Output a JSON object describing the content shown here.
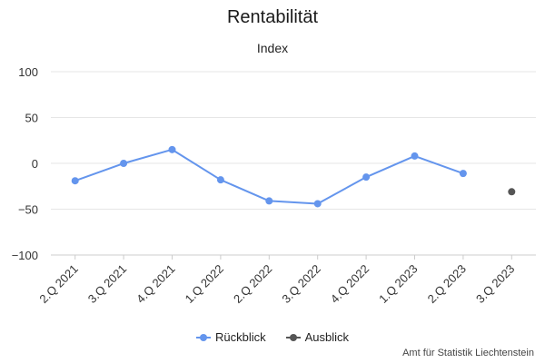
{
  "chart_data": {
    "type": "line",
    "title": "Rentabilität",
    "subtitle": "Index",
    "categories": [
      "2.Q 2021",
      "3.Q 2021",
      "4.Q 2021",
      "1.Q 2022",
      "2.Q 2022",
      "3.Q 2022",
      "4.Q 2022",
      "1.Q 2023",
      "2.Q 2023",
      "3.Q 2023"
    ],
    "ylim": [
      -100,
      100
    ],
    "yticks": [
      100,
      50,
      0,
      -50,
      -100
    ],
    "grid": true,
    "legend_position": "bottom",
    "series": [
      {
        "name": "Rückblick",
        "color": "#6495ed",
        "values": [
          -19,
          0,
          15,
          -18,
          -41,
          -44,
          -15,
          8,
          -11,
          null
        ]
      },
      {
        "name": "Ausblick",
        "color": "#555555",
        "values": [
          null,
          null,
          null,
          null,
          null,
          null,
          null,
          null,
          null,
          -31
        ]
      }
    ],
    "credit": "Amt für Statistik Liechtenstein"
  }
}
